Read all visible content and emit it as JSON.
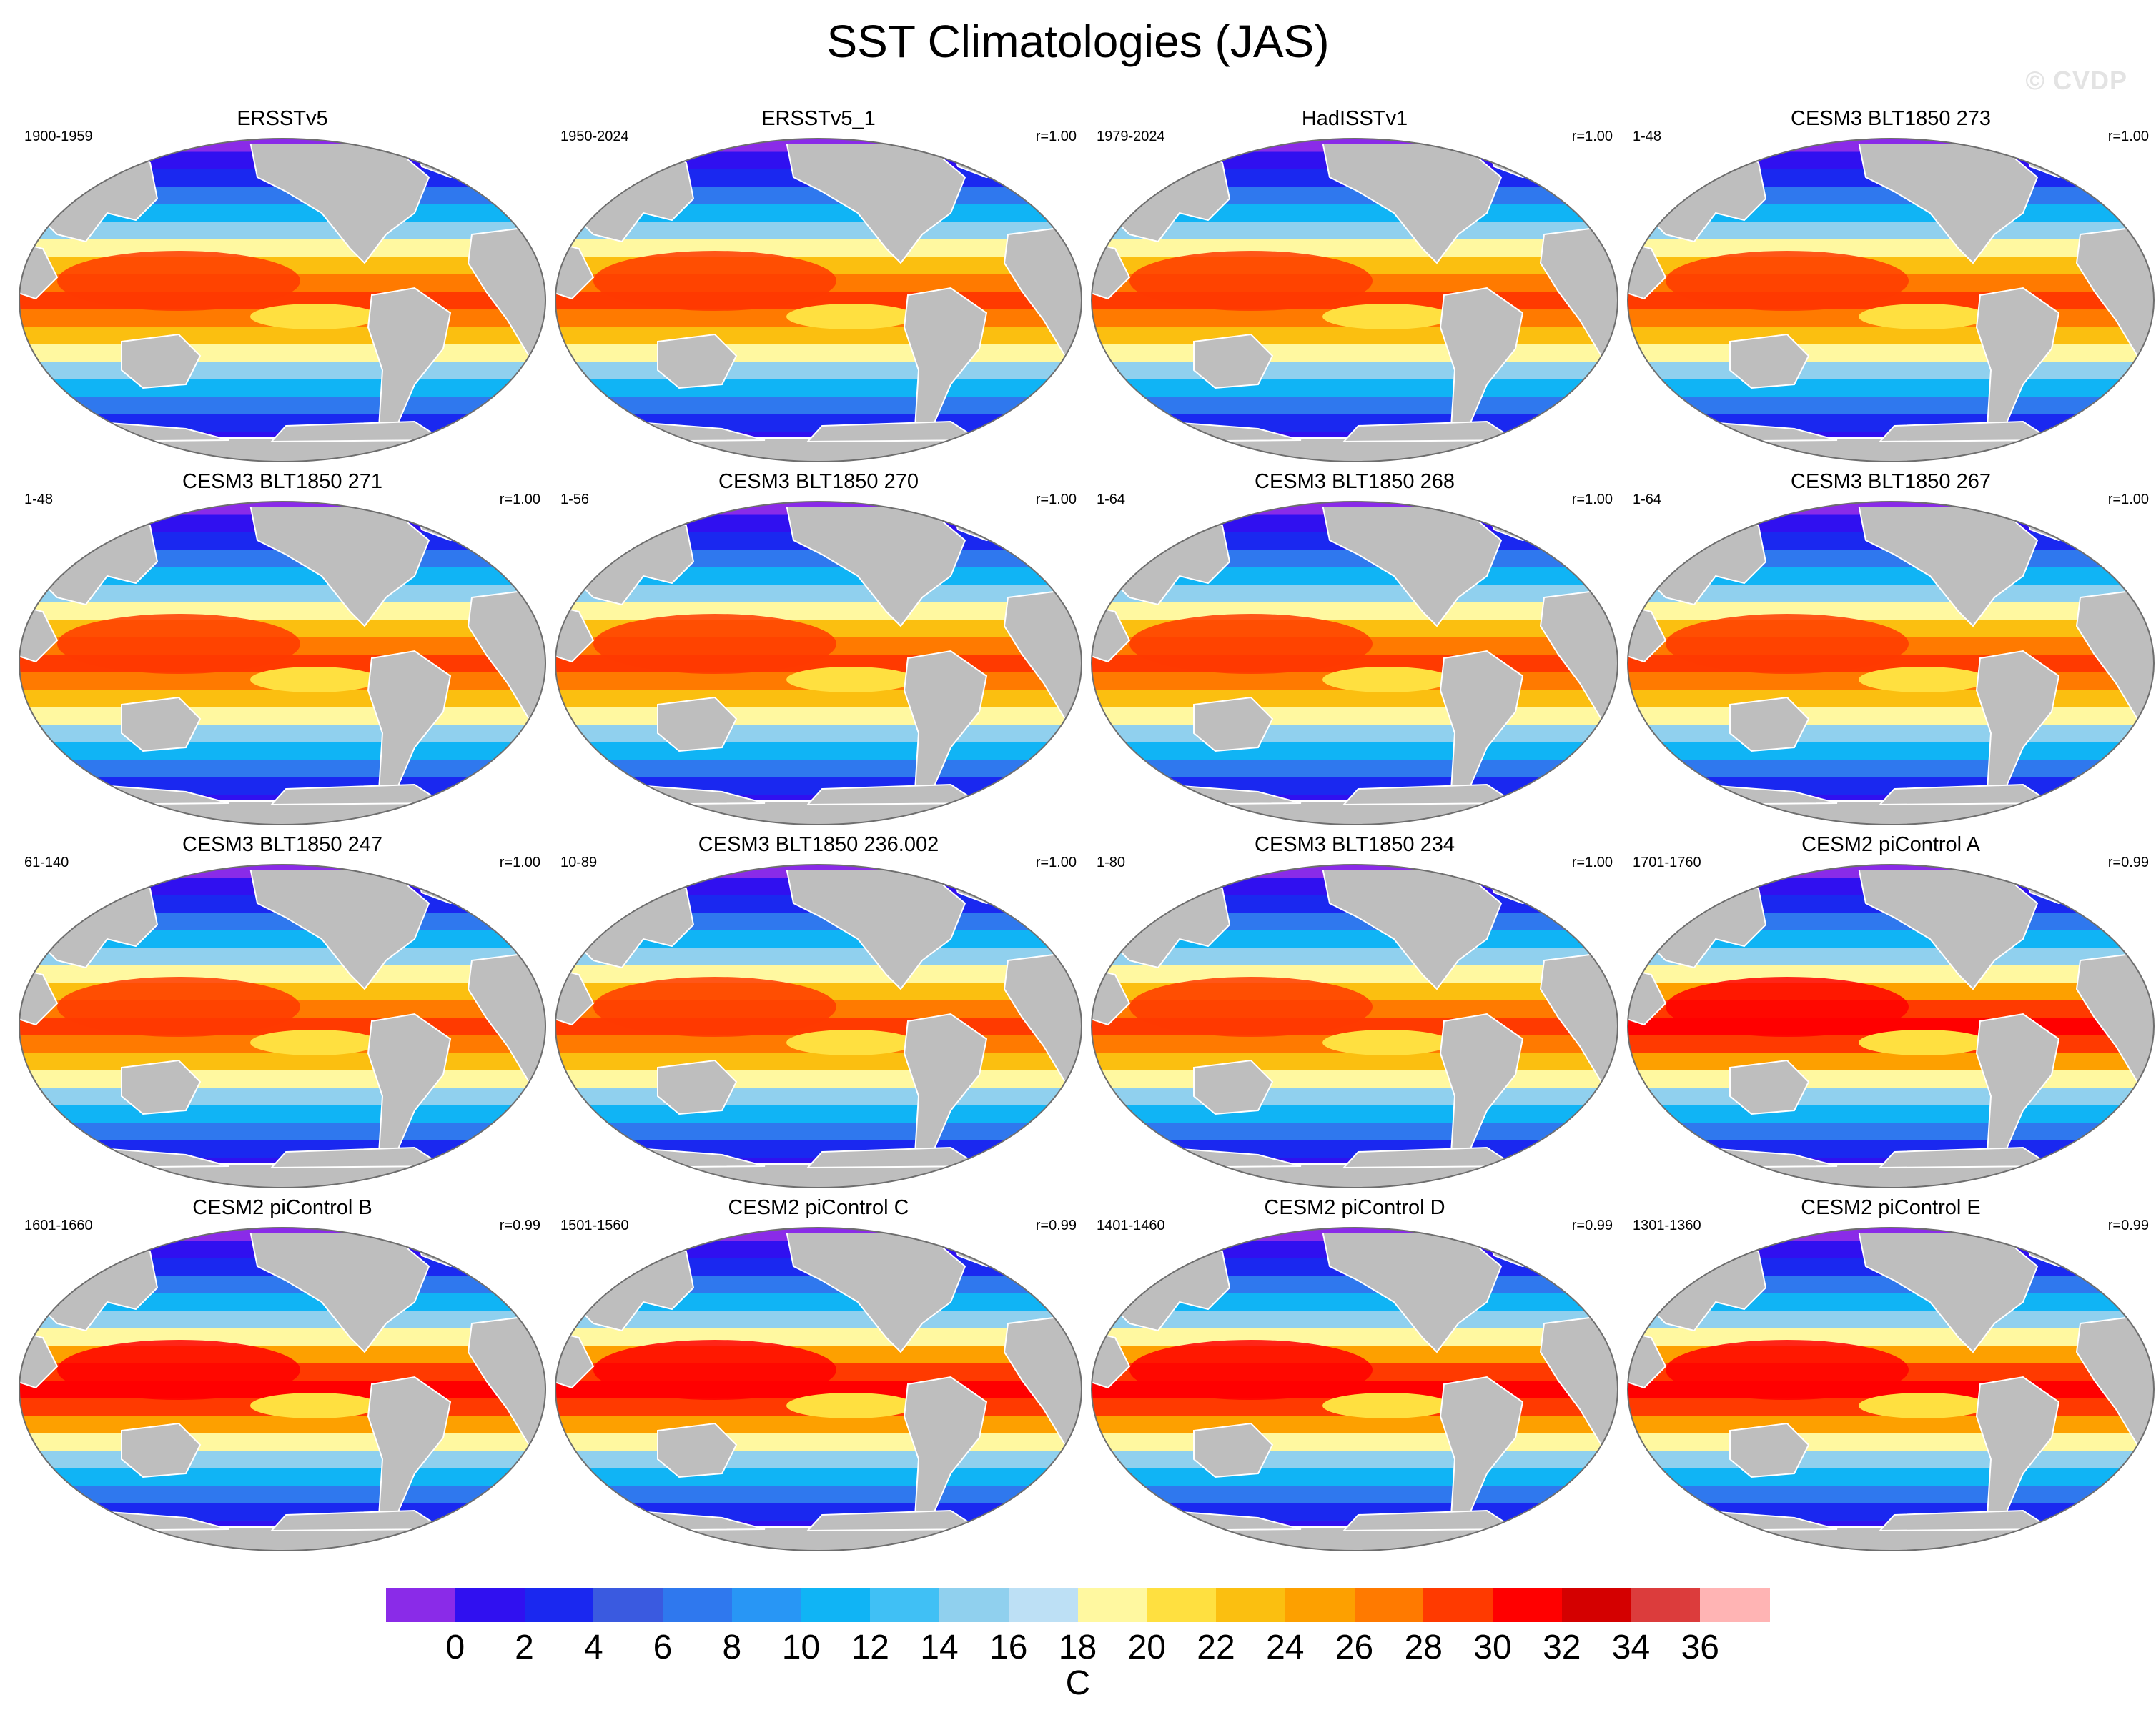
{
  "title": "SST Climatologies (JAS)",
  "watermark": "© CVDP",
  "panels": [
    {
      "title": "ERSSTv5",
      "years": "1900-1959",
      "r": ""
    },
    {
      "title": "ERSSTv5_1",
      "years": "1950-2024",
      "r": "r=1.00"
    },
    {
      "title": "HadISSTv1",
      "years": "1979-2024",
      "r": "r=1.00"
    },
    {
      "title": "CESM3 BLT1850 273",
      "years": "1-48",
      "r": "r=1.00"
    },
    {
      "title": "CESM3 BLT1850 271",
      "years": "1-48",
      "r": "r=1.00"
    },
    {
      "title": "CESM3 BLT1850 270",
      "years": "1-56",
      "r": "r=1.00"
    },
    {
      "title": "CESM3 BLT1850 268",
      "years": "1-64",
      "r": "r=1.00"
    },
    {
      "title": "CESM3 BLT1850 267",
      "years": "1-64",
      "r": "r=1.00"
    },
    {
      "title": "CESM3 BLT1850 247",
      "years": "61-140",
      "r": "r=1.00"
    },
    {
      "title": "CESM3 BLT1850 236.002",
      "years": "10-89",
      "r": "r=1.00"
    },
    {
      "title": "CESM3 BLT1850 234",
      "years": "1-80",
      "r": "r=1.00"
    },
    {
      "title": "CESM2 piControl A",
      "years": "1701-1760",
      "r": "r=0.99"
    },
    {
      "title": "CESM2 piControl B",
      "years": "1601-1660",
      "r": "r=0.99"
    },
    {
      "title": "CESM2 piControl C",
      "years": "1501-1560",
      "r": "r=0.99"
    },
    {
      "title": "CESM2 piControl D",
      "years": "1401-1460",
      "r": "r=0.99"
    },
    {
      "title": "CESM2 piControl E",
      "years": "1301-1360",
      "r": "r=0.99"
    }
  ],
  "colorbar": {
    "units": "C",
    "labels": [
      "0",
      "2",
      "4",
      "6",
      "8",
      "10",
      "12",
      "14",
      "16",
      "18",
      "20",
      "22",
      "24",
      "26",
      "28",
      "30",
      "32",
      "34",
      "36"
    ],
    "colors": [
      "#8a2be8",
      "#3010f0",
      "#1a28f0",
      "#3a5ae0",
      "#2f78ee",
      "#2896f5",
      "#10b4f5",
      "#40c0f5",
      "#90d0ee",
      "#bde0f5",
      "#fff8a0",
      "#ffe040",
      "#fbbf10",
      "#fda000",
      "#ff7a00",
      "#ff3a00",
      "#ff0000",
      "#d40000",
      "#dc3c3c",
      "#ffb4b4"
    ]
  },
  "map_colors": {
    "land": "#bebebe",
    "outline": "#6e6e6e"
  }
}
